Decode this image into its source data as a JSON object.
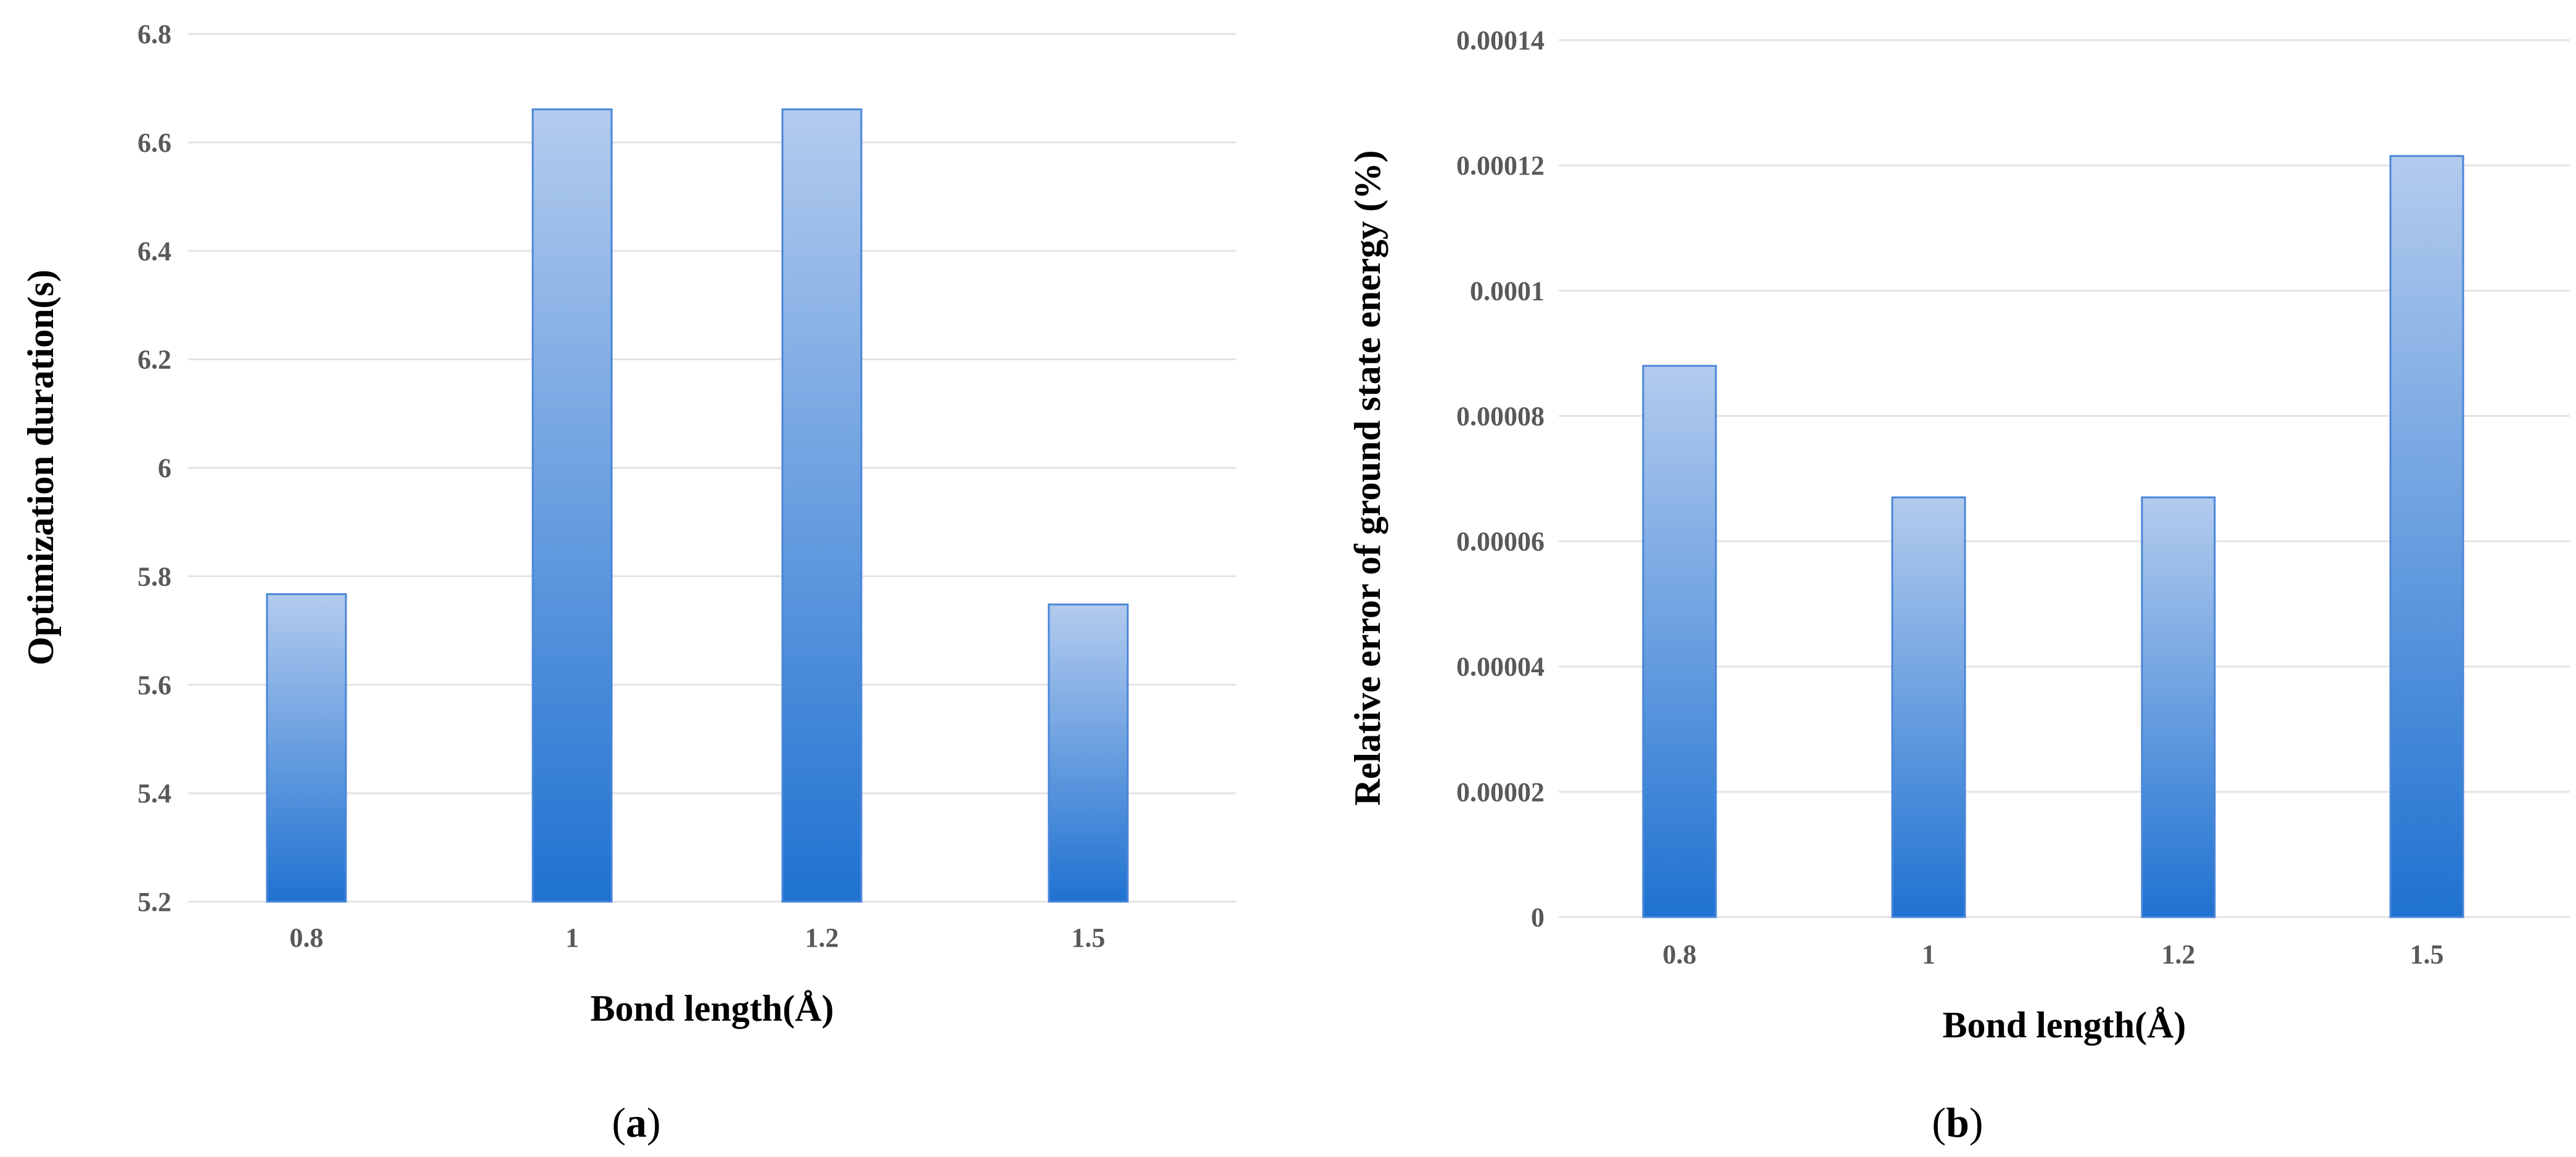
{
  "chart_data": [
    {
      "type": "bar",
      "panel_label": "(a)",
      "panel_letter": "a",
      "categories": [
        "0.8",
        "1",
        "1.2",
        "1.5"
      ],
      "values": [
        5.767,
        6.661,
        6.661,
        5.748
      ],
      "ylim": [
        5.2,
        6.8
      ],
      "yticks": [
        5.2,
        5.4,
        5.6,
        5.8,
        6,
        6.2,
        6.4,
        6.6,
        6.8
      ],
      "ytick_labels": [
        "5.2",
        "5.4",
        "5.6",
        "5.8",
        "6",
        "6.2",
        "6.4",
        "6.6",
        "6.8"
      ],
      "xlabel": "Bond length(Å)",
      "ylabel": "Optimization duration(s)",
      "grid": true,
      "legend": "none",
      "colors": {
        "bar_top": "#b3cbee",
        "bar_bottom": "#1f72d1",
        "bar_edge": "#4a86d8"
      }
    },
    {
      "type": "bar",
      "panel_label": "(b)",
      "panel_letter": "b",
      "categories": [
        "0.8",
        "1",
        "1.2",
        "1.5"
      ],
      "values": [
        8.8e-05,
        6.7e-05,
        6.7e-05,
        0.0001215
      ],
      "ylim": [
        0,
        0.00014
      ],
      "yticks": [
        0,
        2e-05,
        4e-05,
        6e-05,
        8e-05,
        0.0001,
        0.00012,
        0.00014
      ],
      "ytick_labels": [
        "0",
        "0.00002",
        "0.00004",
        "0.00006",
        "0.00008",
        "0.0001",
        "0.00012",
        "0.00014"
      ],
      "xlabel": "Bond length(Å)",
      "ylabel": "Relative error of ground state energy  (%)",
      "grid": true,
      "legend": "none",
      "colors": {
        "bar_top": "#b3cbee",
        "bar_bottom": "#1f72d1",
        "bar_edge": "#4a86d8"
      }
    }
  ]
}
